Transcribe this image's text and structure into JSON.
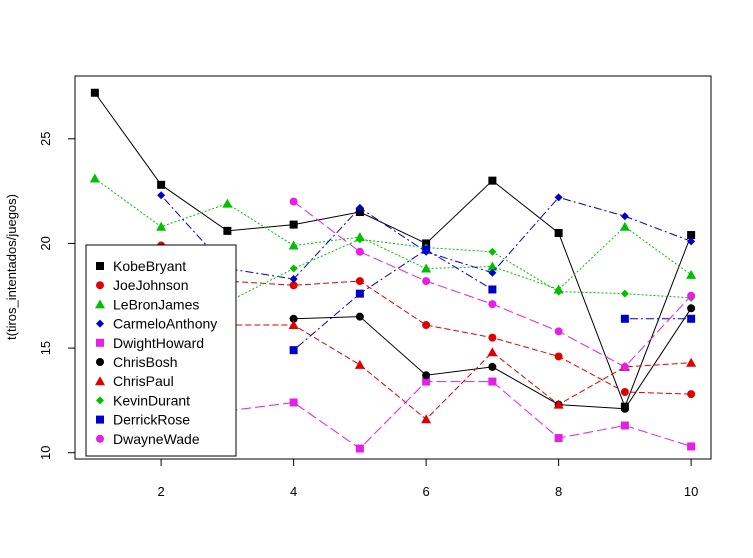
{
  "chart_data": {
    "type": "line",
    "title": "",
    "xlabel": "",
    "ylabel": "t(tiros_intentados/juegos)",
    "xlim": [
      0.7,
      10.3
    ],
    "ylim": [
      9.7,
      28.0
    ],
    "x": [
      1,
      2,
      3,
      4,
      5,
      6,
      7,
      8,
      9,
      10
    ],
    "x_ticks": [
      2,
      4,
      6,
      8,
      10
    ],
    "y_ticks": [
      10,
      15,
      20,
      25
    ],
    "grid": false,
    "legend_position": "bottom-left",
    "series": [
      {
        "name": "KobeBryant",
        "color": "#000000",
        "marker": "square",
        "dash": "solid",
        "values": [
          27.2,
          22.8,
          20.6,
          20.9,
          21.5,
          20.0,
          23.0,
          20.5,
          12.2,
          20.4
        ]
      },
      {
        "name": "JoeJohnson",
        "color": "#DF0000",
        "marker": "circle",
        "dash": "dashed",
        "values": [
          null,
          19.9,
          18.2,
          18.0,
          18.2,
          16.1,
          15.5,
          14.6,
          12.9,
          12.8
        ]
      },
      {
        "name": "LeBronJames",
        "color": "#00C000",
        "marker": "triangle",
        "dash": "dotted",
        "values": [
          23.1,
          20.8,
          21.9,
          19.9,
          20.3,
          18.8,
          18.9,
          17.8,
          20.8,
          18.5
        ]
      },
      {
        "name": "CarmeloAnthony",
        "color": "#0000CC",
        "marker": "diamond",
        "dash": "dotdash",
        "values": [
          null,
          22.3,
          18.8,
          18.3,
          21.7,
          19.6,
          18.6,
          22.2,
          21.3,
          20.1
        ]
      },
      {
        "name": "DwightHoward",
        "color": "#E51FE5",
        "marker": "square",
        "dash": "longdash",
        "values": [
          null,
          null,
          12.0,
          12.4,
          10.2,
          13.4,
          13.4,
          10.7,
          11.3,
          10.3
        ]
      },
      {
        "name": "ChrisBosh",
        "color": "#000000",
        "marker": "circle",
        "dash": "solid",
        "values": [
          null,
          null,
          null,
          16.4,
          16.5,
          13.7,
          14.1,
          12.3,
          12.1,
          16.9
        ]
      },
      {
        "name": "ChrisPaul",
        "color": "#DF0000",
        "marker": "triangle",
        "dash": "dashed",
        "values": [
          null,
          null,
          16.1,
          16.1,
          14.2,
          11.6,
          14.8,
          12.3,
          14.1,
          14.3
        ]
      },
      {
        "name": "KevinDurant",
        "color": "#00C000",
        "marker": "diamond",
        "dash": "dotted",
        "values": [
          null,
          null,
          17.2,
          18.8,
          20.2,
          19.8,
          19.6,
          17.7,
          17.6,
          17.4
        ]
      },
      {
        "name": "DerrickRose",
        "color": "#0000CC",
        "marker": "square",
        "dash": "dotdash",
        "values": [
          null,
          null,
          null,
          14.9,
          17.6,
          19.7,
          17.8,
          null,
          16.4,
          16.4
        ]
      },
      {
        "name": "DwayneWade",
        "color": "#E51FE5",
        "marker": "circle",
        "dash": "longdash",
        "values": [
          null,
          null,
          null,
          22.0,
          19.6,
          18.2,
          17.1,
          15.8,
          14.1,
          17.5
        ]
      }
    ]
  }
}
